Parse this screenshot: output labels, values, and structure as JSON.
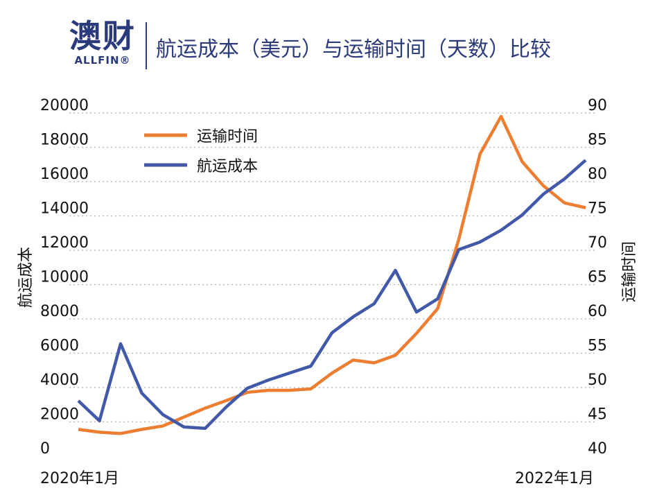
{
  "logo": {
    "cn": "澳财",
    "en": "ALLFIN®"
  },
  "chart_data": {
    "type": "line",
    "title": "航运成本（美元）与运输时间（天数）比较",
    "ylabel": "航运成本",
    "y2label": "运输时间",
    "ylim": [
      0,
      20000
    ],
    "y2lim": [
      40,
      90
    ],
    "yticks": [
      0,
      2000,
      4000,
      6000,
      8000,
      10000,
      12000,
      14000,
      16000,
      18000,
      20000
    ],
    "y2ticks": [
      40,
      45,
      50,
      55,
      60,
      65,
      70,
      75,
      80,
      85,
      90
    ],
    "xtick_labels": [
      "2020年1月",
      "2022年1月"
    ],
    "x": [
      "2020-01",
      "2020-02",
      "2020-03",
      "2020-04",
      "2020-05",
      "2020-06",
      "2020-07",
      "2020-08",
      "2020-09",
      "2020-10",
      "2020-11",
      "2020-12",
      "2021-01",
      "2021-02",
      "2021-03",
      "2021-04",
      "2021-05",
      "2021-06",
      "2021-07",
      "2021-08",
      "2021-09",
      "2021-10",
      "2021-11",
      "2021-12",
      "2022-01"
    ],
    "grid": true,
    "legend": "top-left",
    "series": [
      {
        "name": "运输时间",
        "axis": "right",
        "color": "#ed7d31",
        "values": [
          43.9,
          43.5,
          43.3,
          43.9,
          44.4,
          45.7,
          47.0,
          48.1,
          49.3,
          49.6,
          49.6,
          49.8,
          52.1,
          54.0,
          53.6,
          54.7,
          57.9,
          61.5,
          71.6,
          84.0,
          89.5,
          82.9,
          79.4,
          76.9,
          76.2
        ]
      },
      {
        "name": "航运成本",
        "axis": "left",
        "color": "#4159a8",
        "values": [
          3230,
          2060,
          6550,
          3680,
          2420,
          1700,
          1620,
          2870,
          3960,
          4440,
          4850,
          5250,
          7190,
          8120,
          8890,
          10830,
          8400,
          9170,
          12040,
          12480,
          13170,
          14060,
          15270,
          16160,
          17250
        ]
      }
    ]
  }
}
